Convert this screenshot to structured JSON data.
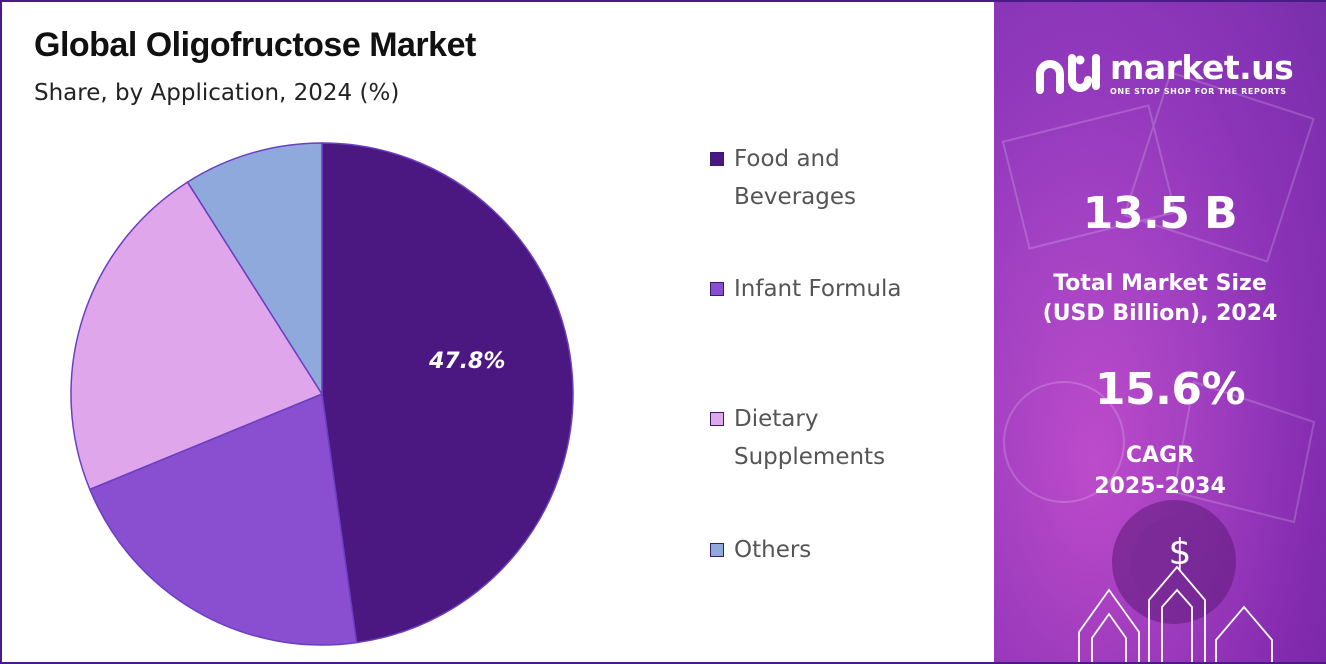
{
  "chart_data": {
    "type": "pie",
    "title": "Global Oligofructose Market",
    "subtitle": "Share, by Application, 2024 (%)",
    "categories": [
      "Food and Beverages",
      "Infant Formula",
      "Dietary Supplements",
      "Others"
    ],
    "values": [
      47.8,
      21.0,
      22.2,
      9.0
    ],
    "data_labels": [
      "47.8%",
      "",
      "",
      ""
    ],
    "colors": [
      "#4b1780",
      "#8a4fd1",
      "#dfa6ec",
      "#8fa9dd"
    ],
    "legend_position": "right"
  },
  "side_panel": {
    "brand": "market.us",
    "tagline": "ONE STOP SHOP FOR THE REPORTS",
    "market_size_value": "13.5 B",
    "market_size_label_1": "Total Market Size",
    "market_size_label_2": "(USD Billion), 2024",
    "cagr_value": "15.6%",
    "cagr_label_1": "CAGR",
    "cagr_label_2": "2025-2034",
    "dollar_symbol": "$",
    "icons": [
      "market-us-logo-icon",
      "dollar-icon",
      "up-arrow-icon"
    ]
  }
}
